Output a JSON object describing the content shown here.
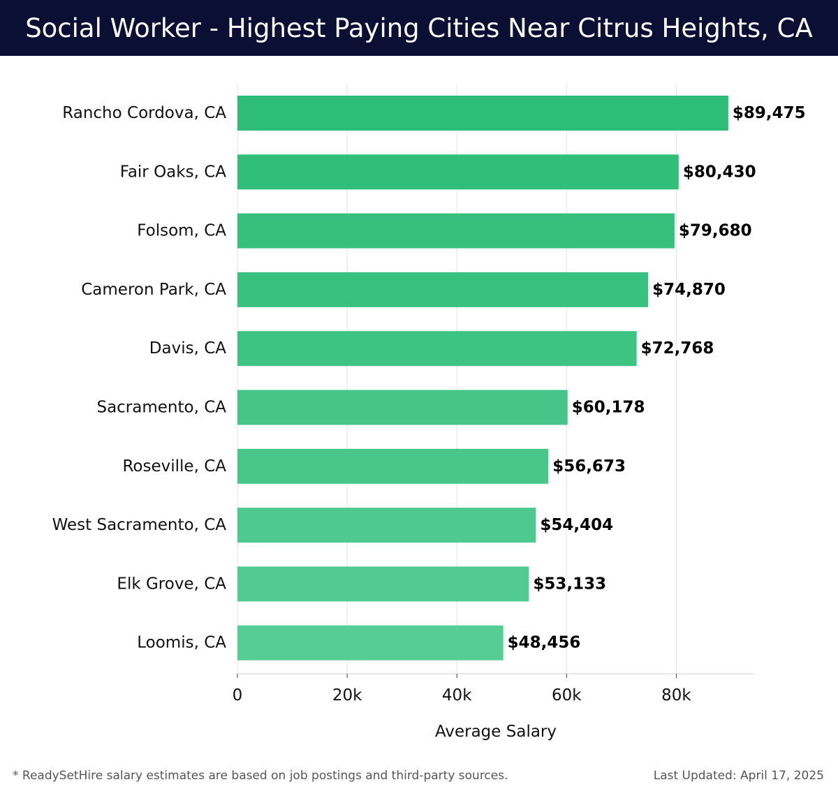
{
  "header": {
    "title": "Social Worker - Highest Paying Cities Near Citrus Heights, CA"
  },
  "chart_data": {
    "type": "bar",
    "orientation": "horizontal",
    "categories": [
      "Rancho Cordova, CA",
      "Fair Oaks, CA",
      "Folsom, CA",
      "Cameron Park, CA",
      "Davis, CA",
      "Sacramento, CA",
      "Roseville, CA",
      "West Sacramento, CA",
      "Elk Grove, CA",
      "Loomis, CA"
    ],
    "values": [
      89475,
      80430,
      79680,
      74870,
      72768,
      60178,
      56673,
      54404,
      53133,
      48456
    ],
    "value_labels": [
      "$89,475",
      "$80,430",
      "$79,680",
      "$74,870",
      "$72,768",
      "$60,178",
      "$56,673",
      "$54,404",
      "$53,133",
      "$48,456"
    ],
    "xlabel": "Average Salary",
    "ylabel": "",
    "xlim": [
      0,
      94200
    ],
    "xticks": [
      0,
      20000,
      40000,
      60000,
      80000
    ],
    "xtick_labels": [
      "0",
      "20k",
      "40k",
      "60k",
      "80k"
    ],
    "grid": true,
    "bar_colors": [
      "#2dbd77",
      "#31be79",
      "#35c07c",
      "#39c27f",
      "#3dc382",
      "#45c688",
      "#49c78b",
      "#4ec98f",
      "#52cb92",
      "#57cd96"
    ]
  },
  "footer": {
    "note": "* ReadySetHire salary estimates are based on job postings and third-party sources.",
    "updated": "Last Updated: April 17, 2025"
  }
}
